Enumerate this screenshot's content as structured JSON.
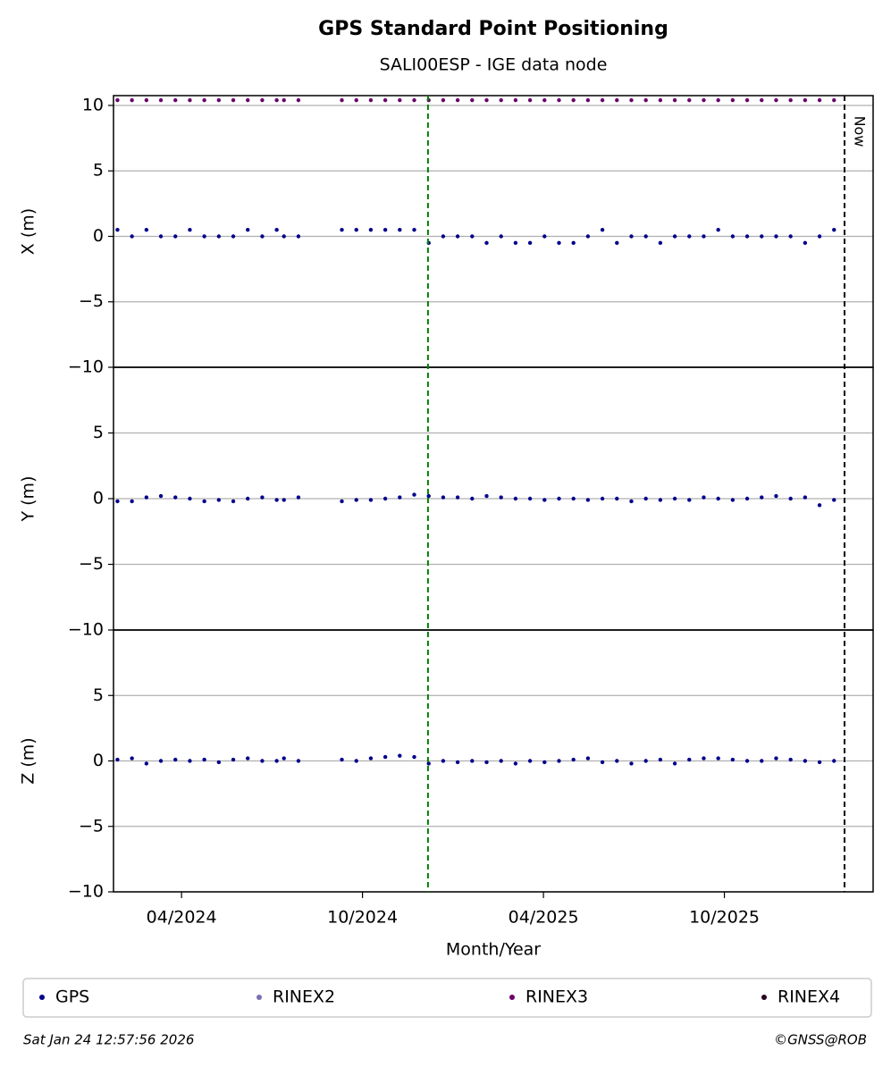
{
  "title": "GPS Standard Point Positioning",
  "subtitle": "SALI00ESP - IGE data node",
  "chart_data": [
    {
      "type": "scatter",
      "ylabel": "X (m)",
      "ylim": [
        -10,
        10.75
      ],
      "yticks": [
        {
          "value": -10,
          "label": "−10"
        },
        {
          "value": -5,
          "label": "−5"
        },
        0,
        5,
        10
      ],
      "x": [
        2024.07,
        2024.11,
        2024.15,
        2024.19,
        2024.23,
        2024.27,
        2024.31,
        2024.35,
        2024.39,
        2024.43,
        2024.47,
        2024.51,
        2024.53,
        2024.57,
        2024.69,
        2024.73,
        2024.77,
        2024.81,
        2024.85,
        2024.89,
        2024.93,
        2024.97,
        2025.01,
        2025.05,
        2025.09,
        2025.13,
        2025.17,
        2025.21,
        2025.25,
        2025.29,
        2025.33,
        2025.37,
        2025.41,
        2025.45,
        2025.49,
        2025.53,
        2025.57,
        2025.61,
        2025.65,
        2025.69,
        2025.73,
        2025.77,
        2025.81,
        2025.85,
        2025.89,
        2025.93,
        2025.97,
        2026.01,
        2026.05
      ],
      "series": [
        {
          "color": "#00008b",
          "values": [
            0.5,
            0,
            0.5,
            0,
            0,
            0.5,
            0,
            0,
            0,
            0.5,
            0,
            0.5,
            0,
            0,
            0.5,
            0.5,
            0.5,
            0.5,
            0.5,
            0.5,
            -0.5,
            0,
            0,
            0,
            -0.5,
            0,
            -0.5,
            -0.5,
            0,
            -0.5,
            -0.5,
            0,
            0.5,
            -0.5,
            0,
            0,
            -0.5,
            0,
            0,
            0,
            0.5,
            0,
            0,
            0,
            0,
            0,
            -0.5,
            0,
            0.5
          ]
        },
        {
          "color": "#6a006a",
          "values": [
            10.4,
            10.4,
            10.4,
            10.4,
            10.4,
            10.4,
            10.4,
            10.4,
            10.4,
            10.4,
            10.4,
            10.4,
            10.4,
            10.4,
            10.4,
            10.4,
            10.4,
            10.4,
            10.4,
            10.4,
            10.4,
            10.4,
            10.4,
            10.4,
            10.4,
            10.4,
            10.4,
            10.4,
            10.4,
            10.4,
            10.4,
            10.4,
            10.4,
            10.4,
            10.4,
            10.4,
            10.4,
            10.4,
            10.4,
            10.4,
            10.4,
            10.4,
            10.4,
            10.4,
            10.4,
            10.4,
            10.4,
            10.4,
            10.4
          ]
        }
      ]
    },
    {
      "type": "scatter",
      "ylabel": "Y (m)",
      "ylim": [
        -10,
        10
      ],
      "yticks": [
        {
          "value": -10,
          "label": "−10"
        },
        {
          "value": -5,
          "label": "−5"
        },
        0,
        5
      ],
      "x": [
        2024.07,
        2024.11,
        2024.15,
        2024.19,
        2024.23,
        2024.27,
        2024.31,
        2024.35,
        2024.39,
        2024.43,
        2024.47,
        2024.51,
        2024.53,
        2024.57,
        2024.69,
        2024.73,
        2024.77,
        2024.81,
        2024.85,
        2024.89,
        2024.93,
        2024.97,
        2025.01,
        2025.05,
        2025.09,
        2025.13,
        2025.17,
        2025.21,
        2025.25,
        2025.29,
        2025.33,
        2025.37,
        2025.41,
        2025.45,
        2025.49,
        2025.53,
        2025.57,
        2025.61,
        2025.65,
        2025.69,
        2025.73,
        2025.77,
        2025.81,
        2025.85,
        2025.89,
        2025.93,
        2025.97,
        2026.01,
        2026.05
      ],
      "series": [
        {
          "color": "#00008b",
          "values": [
            -0.2,
            -0.2,
            0.1,
            0.2,
            0.1,
            0,
            -0.2,
            -0.1,
            -0.2,
            0,
            0.1,
            -0.1,
            -0.1,
            0.1,
            -0.2,
            -0.1,
            -0.1,
            0,
            0.1,
            0.3,
            0.2,
            0.1,
            0.1,
            0,
            0.2,
            0.1,
            0,
            0,
            -0.1,
            0,
            0,
            -0.1,
            0,
            0,
            -0.2,
            0,
            -0.1,
            0,
            -0.1,
            0.1,
            0,
            -0.1,
            0,
            0.1,
            0.2,
            0,
            0.1,
            -0.5,
            -0.1
          ]
        }
      ]
    },
    {
      "type": "scatter",
      "ylabel": "Z (m)",
      "ylim": [
        -10,
        10
      ],
      "yticks": [
        {
          "value": -10,
          "label": "−10"
        },
        {
          "value": -5,
          "label": "−5"
        },
        0,
        5
      ],
      "x": [
        2024.07,
        2024.11,
        2024.15,
        2024.19,
        2024.23,
        2024.27,
        2024.31,
        2024.35,
        2024.39,
        2024.43,
        2024.47,
        2024.51,
        2024.53,
        2024.57,
        2024.69,
        2024.73,
        2024.77,
        2024.81,
        2024.85,
        2024.89,
        2024.93,
        2024.97,
        2025.01,
        2025.05,
        2025.09,
        2025.13,
        2025.17,
        2025.21,
        2025.25,
        2025.29,
        2025.33,
        2025.37,
        2025.41,
        2025.45,
        2025.49,
        2025.53,
        2025.57,
        2025.61,
        2025.65,
        2025.69,
        2025.73,
        2025.77,
        2025.81,
        2025.85,
        2025.89,
        2025.93,
        2025.97,
        2026.01,
        2026.05
      ],
      "series": [
        {
          "color": "#00008b",
          "values": [
            0.1,
            0.2,
            -0.2,
            0,
            0.1,
            0,
            0.1,
            -0.1,
            0.1,
            0.2,
            0,
            0,
            0.2,
            0,
            0.1,
            0,
            0.2,
            0.3,
            0.4,
            0.3,
            -0.2,
            0,
            -0.1,
            0,
            -0.1,
            0,
            -0.2,
            0,
            -0.1,
            0,
            0.1,
            0.2,
            -0.1,
            0,
            -0.2,
            0,
            0.1,
            -0.2,
            0.1,
            0.2,
            0.2,
            0.1,
            0,
            0,
            0.2,
            0.1,
            0,
            -0.1,
            0
          ]
        }
      ]
    }
  ],
  "xlim": [
    2024.059,
    2026.158
  ],
  "xticks": [
    {
      "value": 2024.247,
      "label": "04/2024"
    },
    {
      "value": 2024.747,
      "label": "10/2024"
    },
    {
      "value": 2025.247,
      "label": "04/2025"
    },
    {
      "value": 2025.747,
      "label": "10/2025"
    }
  ],
  "xlabel": "Month/Year",
  "vlines": [
    {
      "x": 2024.928,
      "color": "#008000"
    },
    {
      "x": 2026.079,
      "color": "#000000",
      "label": "Now"
    }
  ],
  "legend": [
    {
      "name": "GPS",
      "color": "#00008b"
    },
    {
      "name": "RINEX2",
      "color": "#7b6fb0"
    },
    {
      "name": "RINEX3",
      "color": "#6a006a"
    },
    {
      "name": "RINEX4",
      "color": "#2a0022"
    }
  ],
  "footer": {
    "timestamp": "Sat Jan 24 12:57:56 2026",
    "credit": "©GNSS@ROB"
  }
}
